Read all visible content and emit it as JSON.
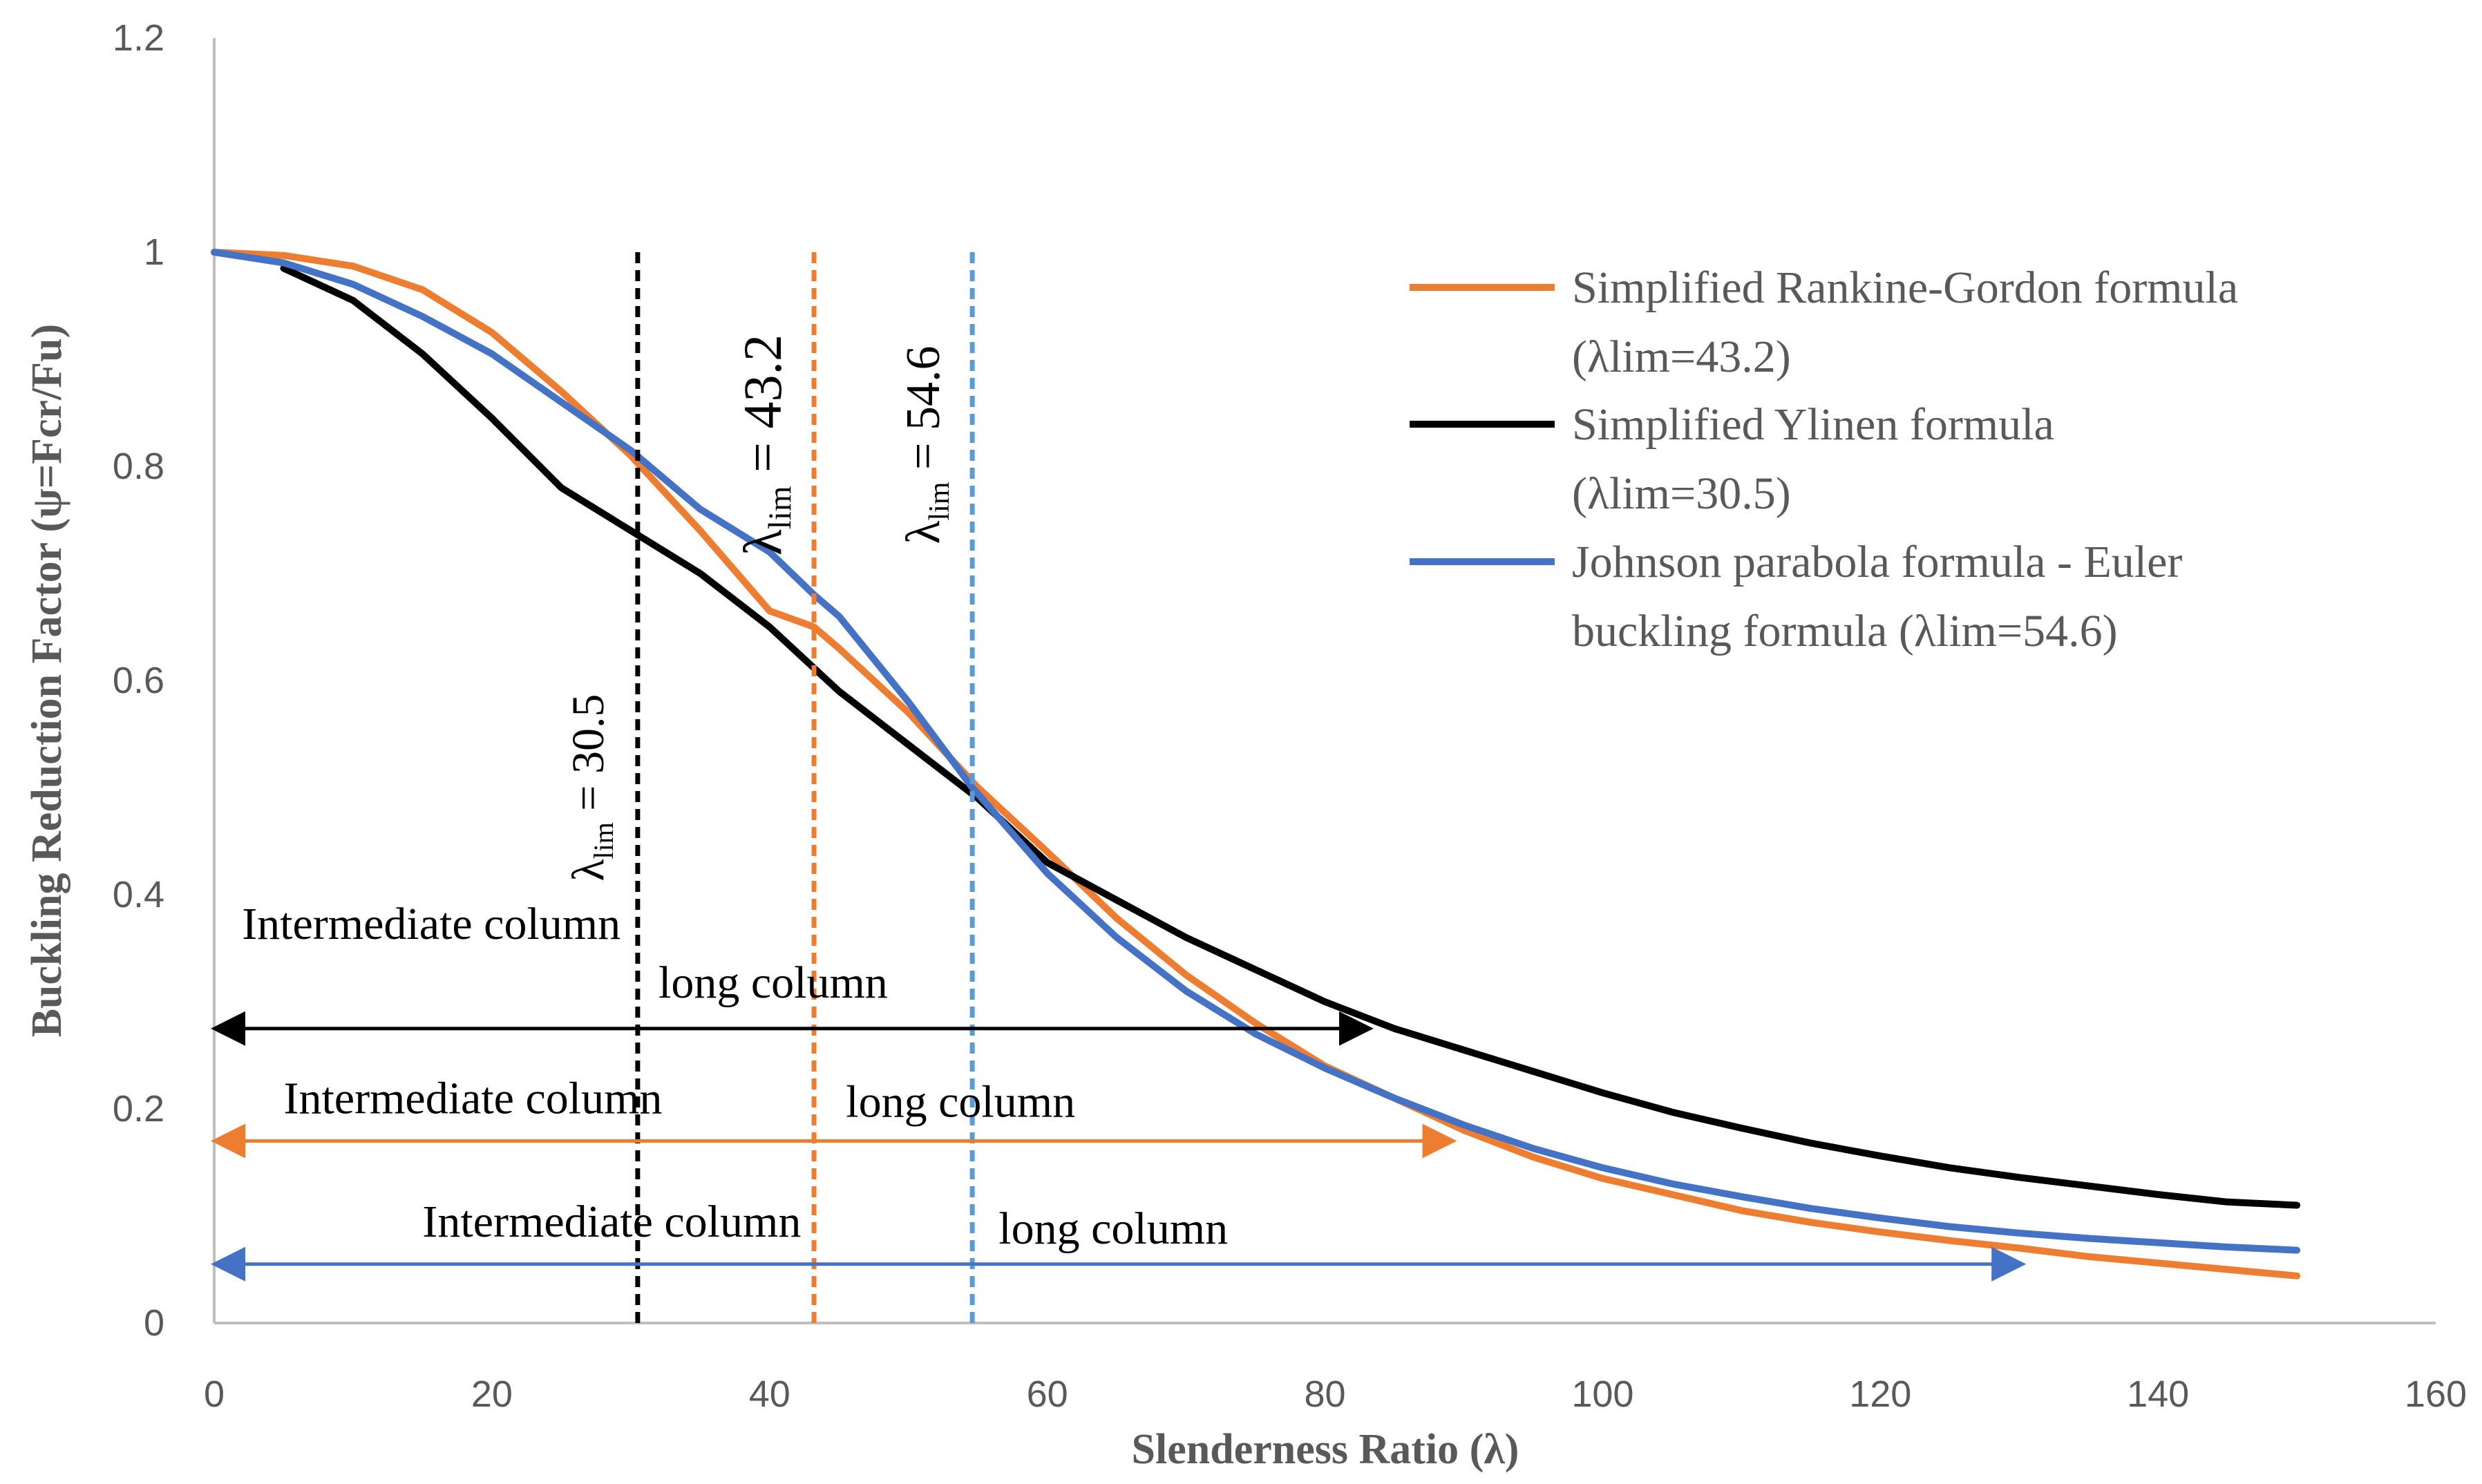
{
  "chart_data": {
    "type": "line",
    "xlabel": "Slenderness Ratio (λ)",
    "ylabel": "Buckling Reduction Factor (ψ=Fcr/Fu)",
    "xlim": [
      0,
      160
    ],
    "ylim": [
      0,
      1.2
    ],
    "x_ticks": [
      "0",
      "20",
      "40",
      "60",
      "80",
      "100",
      "120",
      "140",
      "160"
    ],
    "y_ticks": [
      "0",
      "0.2",
      "0.4",
      "0.6",
      "0.8",
      "1",
      "1.2"
    ],
    "colors": {
      "rankine": "#ED7D31",
      "ylinen": "#000000",
      "johnson": "#4472C4",
      "axis": "#BFBFBF",
      "lim_orange": "#ED7D31",
      "lim_blue": "#5B9BD5"
    },
    "series": [
      {
        "key": "rankine",
        "name": "Simplified Rankine-Gordon formula",
        "name_line2": "(λlim=43.2)",
        "color": "#ED7D31",
        "x": [
          0,
          5,
          10,
          15,
          20,
          25,
          30,
          35,
          40,
          43.2,
          45,
          50,
          55,
          60,
          65,
          70,
          75,
          80,
          85,
          90,
          95,
          100,
          105,
          110,
          115,
          120,
          125,
          130,
          135,
          140,
          145,
          150
        ],
        "values": [
          1.0,
          0.997,
          0.987,
          0.965,
          0.925,
          0.87,
          0.81,
          0.74,
          0.665,
          0.65,
          0.63,
          0.57,
          0.5,
          0.44,
          0.378,
          0.325,
          0.28,
          0.24,
          0.21,
          0.18,
          0.155,
          0.135,
          0.12,
          0.105,
          0.094,
          0.085,
          0.077,
          0.07,
          0.062,
          0.056,
          0.05,
          0.044
        ]
      },
      {
        "key": "ylinen",
        "name": "Simplified Ylinen formula",
        "name_line2": "(λlim=30.5)",
        "color": "#000000",
        "x": [
          5,
          10,
          15,
          20,
          25,
          30,
          35,
          40,
          45,
          50,
          55,
          60,
          65,
          70,
          75,
          80,
          85,
          90,
          95,
          100,
          105,
          110,
          115,
          120,
          125,
          130,
          135,
          140,
          145,
          150
        ],
        "values": [
          0.985,
          0.955,
          0.905,
          0.845,
          0.78,
          0.74,
          0.7,
          0.65,
          0.59,
          0.54,
          0.49,
          0.43,
          0.395,
          0.36,
          0.33,
          0.3,
          0.275,
          0.255,
          0.235,
          0.215,
          0.197,
          0.182,
          0.168,
          0.156,
          0.145,
          0.136,
          0.128,
          0.12,
          0.113,
          0.11
        ]
      },
      {
        "key": "johnson",
        "name": "Johnson parabola formula - Euler",
        "name_line2": "buckling formula (λlim=54.6)",
        "color": "#4472C4",
        "x": [
          0,
          5,
          10,
          15,
          20,
          25,
          30,
          35,
          40,
          43.2,
          45,
          50,
          54.6,
          60,
          65,
          70,
          75,
          80,
          85,
          90,
          95,
          100,
          105,
          110,
          115,
          120,
          125,
          130,
          135,
          140,
          145,
          150
        ],
        "values": [
          1.0,
          0.99,
          0.97,
          0.94,
          0.905,
          0.86,
          0.815,
          0.76,
          0.72,
          0.68,
          0.66,
          0.58,
          0.5,
          0.42,
          0.36,
          0.31,
          0.27,
          0.238,
          0.21,
          0.185,
          0.163,
          0.145,
          0.13,
          0.118,
          0.107,
          0.098,
          0.09,
          0.084,
          0.079,
          0.075,
          0.071,
          0.068
        ]
      }
    ],
    "lambda_lines": [
      {
        "x": 30.5,
        "color": "#000000",
        "label_main": "λ",
        "label_sub": "lim",
        "label_eq": " = 30.5"
      },
      {
        "x": 43.2,
        "color": "#ED7D31",
        "label_main": "λ",
        "label_sub": "lim",
        "label_eq": " = 43.2"
      },
      {
        "x": 54.6,
        "color": "#5B9BD5",
        "label_main": "λ",
        "label_sub": "lim",
        "label_eq": " = 54.6"
      }
    ],
    "arrow_bands": [
      {
        "color": "#000000",
        "y": 0.275,
        "x_from": 0,
        "x_to": 83,
        "x_split": 30.5,
        "left_label": "Intermediate column",
        "right_label": "long column"
      },
      {
        "color": "#ED7D31",
        "y": 0.17,
        "x_from": 0,
        "x_to": 89,
        "x_split": 43.2,
        "left_label": "Intermediate column",
        "right_label": "long column"
      },
      {
        "color": "#4472C4",
        "y": 0.055,
        "x_from": 0,
        "x_to": 130,
        "x_split": 54.6,
        "left_label": "Intermediate column",
        "right_label": "long column"
      }
    ]
  }
}
